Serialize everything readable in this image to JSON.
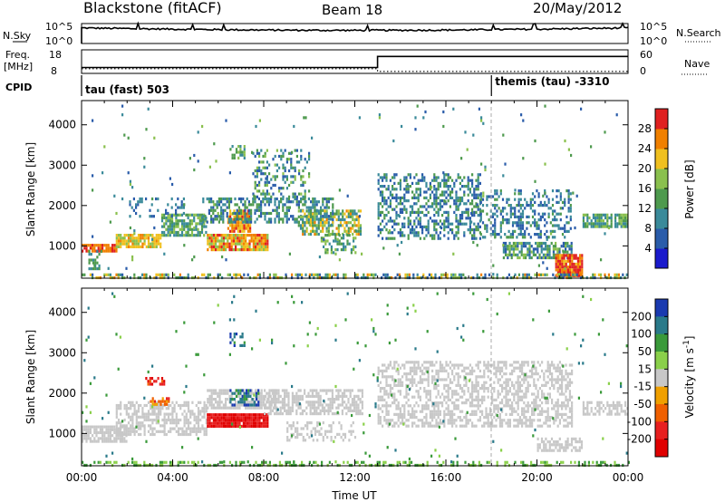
{
  "header": {
    "station": "Blackstone (fitACF)",
    "beam": "Beam 18",
    "date": "20/May/2012"
  },
  "top_panel": {
    "nsky_label": "N.Sky",
    "nsearch_label": "N.Search",
    "nsky_tick_top": "10^5",
    "nsky_tick_bottom": "10^0",
    "nsearch_tick_top": "10^5",
    "nsearch_tick_bottom": "10^0",
    "freq_label_1": "Freq.",
    "freq_label_2": "[MHz]",
    "freq_tick_top": "18",
    "freq_tick_bottom": "8",
    "nave_label": "Nave",
    "nave_tick_top": "60",
    "nave_tick_bottom": "0",
    "cpid_label": "CPID",
    "cpid_segments": [
      {
        "start_hour": 0,
        "label": "tau (fast) 503"
      },
      {
        "start_hour": 18,
        "label": "themis (tau) -3310"
      }
    ],
    "freq_steps": [
      [
        0,
        10.5
      ],
      [
        13,
        10.5
      ],
      [
        13,
        15.2
      ],
      [
        24,
        15.2
      ]
    ],
    "nave_steps": [
      [
        0,
        12
      ],
      [
        13,
        12
      ],
      [
        13,
        5
      ],
      [
        24,
        5
      ]
    ]
  },
  "chart_data": [
    {
      "type": "heatmap",
      "parameter": "power",
      "xlabel": "",
      "ylabel": "Slant Range [km]",
      "xlim": [
        0,
        24
      ],
      "ylim": [
        200,
        4600
      ],
      "yticks": [
        1000,
        2000,
        3000,
        4000
      ],
      "colorbar_label": "Power [dB]",
      "colorbar_range": [
        0,
        32
      ],
      "colorbar_ticks": [
        4,
        8,
        12,
        16,
        20,
        24,
        28
      ],
      "colorbar_colors": [
        "#1a1acc",
        "#2a5caa",
        "#3a8a9a",
        "#4e9a4e",
        "#8ac04e",
        "#f0c020",
        "#f08000",
        "#e02020"
      ]
    },
    {
      "type": "heatmap",
      "parameter": "velocity",
      "xlabel": "Time UT",
      "ylabel": "Slant Range [km]",
      "xlim": [
        0,
        24
      ],
      "ylim": [
        200,
        4600
      ],
      "yticks": [
        1000,
        2000,
        3000,
        4000
      ],
      "xticks": [
        "00:00",
        "04:00",
        "08:00",
        "12:00",
        "16:00",
        "20:00",
        "00:00"
      ],
      "colorbar_label": "Velocity [m s^-1]",
      "colorbar_ticks": [
        "200",
        "100",
        "50",
        "15",
        "-15",
        "-50",
        "-100",
        "-200"
      ],
      "colorbar_colors": [
        "#1a3ab0",
        "#2a7a8a",
        "#3a9a3a",
        "#8ad04a",
        "#c8c8c8",
        "#f0a000",
        "#f06000",
        "#e82020",
        "#e00000"
      ]
    }
  ],
  "scatter_regions": {
    "power": [
      {
        "x0": 0.0,
        "x1": 1.5,
        "y0": 850,
        "y1": 1050,
        "density": 0.9,
        "vals": [
          24,
          30
        ]
      },
      {
        "x0": 0.3,
        "x1": 0.9,
        "y0": 400,
        "y1": 900,
        "density": 0.35,
        "vals": [
          8,
          16
        ]
      },
      {
        "x0": 1.5,
        "x1": 3.5,
        "y0": 1000,
        "y1": 1300,
        "density": 0.85,
        "vals": [
          18,
          26
        ]
      },
      {
        "x0": 3.5,
        "x1": 5.5,
        "y0": 1250,
        "y1": 1800,
        "density": 0.75,
        "vals": [
          8,
          20
        ]
      },
      {
        "x0": 2.0,
        "x1": 4.5,
        "y0": 1700,
        "y1": 2200,
        "density": 0.25,
        "vals": [
          4,
          12
        ]
      },
      {
        "x0": 5.5,
        "x1": 8.2,
        "y0": 900,
        "y1": 1300,
        "density": 0.9,
        "vals": [
          18,
          30
        ]
      },
      {
        "x0": 6.4,
        "x1": 7.4,
        "y0": 1350,
        "y1": 1900,
        "density": 0.85,
        "vals": [
          20,
          30
        ]
      },
      {
        "x0": 5.3,
        "x1": 11.0,
        "y0": 1600,
        "y1": 2200,
        "density": 0.55,
        "vals": [
          4,
          16
        ]
      },
      {
        "x0": 7.5,
        "x1": 10.0,
        "y0": 2200,
        "y1": 3400,
        "density": 0.3,
        "vals": [
          4,
          18
        ]
      },
      {
        "x0": 6.5,
        "x1": 7.2,
        "y0": 3200,
        "y1": 3500,
        "density": 0.4,
        "vals": [
          8,
          18
        ]
      },
      {
        "x0": 9.5,
        "x1": 12.3,
        "y0": 1300,
        "y1": 1900,
        "density": 0.65,
        "vals": [
          8,
          26
        ]
      },
      {
        "x0": 10.5,
        "x1": 12.0,
        "y0": 800,
        "y1": 1300,
        "density": 0.4,
        "vals": [
          8,
          20
        ]
      },
      {
        "x0": 13.0,
        "x1": 17.5,
        "y0": 1200,
        "y1": 2800,
        "density": 0.45,
        "vals": [
          4,
          16
        ]
      },
      {
        "x0": 17.5,
        "x1": 21.5,
        "y0": 1200,
        "y1": 2400,
        "density": 0.35,
        "vals": [
          4,
          14
        ]
      },
      {
        "x0": 18.5,
        "x1": 21.5,
        "y0": 700,
        "y1": 1100,
        "density": 0.7,
        "vals": [
          4,
          20
        ]
      },
      {
        "x0": 20.8,
        "x1": 22.0,
        "y0": 250,
        "y1": 800,
        "density": 0.9,
        "vals": [
          22,
          32
        ]
      },
      {
        "x0": 22.0,
        "x1": 24.0,
        "y0": 1450,
        "y1": 1800,
        "density": 0.8,
        "vals": [
          8,
          20
        ]
      },
      {
        "x0": 0.0,
        "x1": 24.0,
        "y0": 220,
        "y1": 320,
        "density": 0.5,
        "vals": [
          4,
          26
        ]
      },
      {
        "x0": 0.0,
        "x1": 24.0,
        "y0": 300,
        "y1": 4500,
        "density": 0.01,
        "vals": [
          4,
          20
        ]
      }
    ],
    "velocity": [
      {
        "x0": 0.0,
        "x1": 2.0,
        "y0": 800,
        "y1": 1200,
        "density": 0.85,
        "vals": [
          -15,
          15
        ]
      },
      {
        "x0": 1.5,
        "x1": 5.5,
        "y0": 1000,
        "y1": 1800,
        "density": 0.55,
        "vals": [
          -15,
          15
        ]
      },
      {
        "x0": 3.0,
        "x1": 3.8,
        "y0": 1700,
        "y1": 1900,
        "density": 0.6,
        "vals": [
          -100,
          -15
        ]
      },
      {
        "x0": 2.8,
        "x1": 3.6,
        "y0": 2200,
        "y1": 2400,
        "density": 0.6,
        "vals": [
          -200,
          -50
        ]
      },
      {
        "x0": 5.5,
        "x1": 8.2,
        "y0": 1150,
        "y1": 1500,
        "density": 0.95,
        "vals": [
          -200,
          -100
        ]
      },
      {
        "x0": 5.5,
        "x1": 8.5,
        "y0": 1600,
        "y1": 2100,
        "density": 0.7,
        "vals": [
          -15,
          15
        ]
      },
      {
        "x0": 6.5,
        "x1": 7.8,
        "y0": 1700,
        "y1": 2100,
        "density": 0.5,
        "vals": [
          50,
          200
        ]
      },
      {
        "x0": 6.5,
        "x1": 7.2,
        "y0": 3200,
        "y1": 3500,
        "density": 0.5,
        "vals": [
          50,
          200
        ]
      },
      {
        "x0": 8.0,
        "x1": 12.3,
        "y0": 1500,
        "y1": 2100,
        "density": 0.6,
        "vals": [
          -15,
          15
        ]
      },
      {
        "x0": 9.0,
        "x1": 12.0,
        "y0": 800,
        "y1": 1300,
        "density": 0.4,
        "vals": [
          -15,
          15
        ]
      },
      {
        "x0": 13.0,
        "x1": 21.5,
        "y0": 1200,
        "y1": 2800,
        "density": 0.5,
        "vals": [
          -15,
          15
        ]
      },
      {
        "x0": 20.0,
        "x1": 22.0,
        "y0": 600,
        "y1": 900,
        "density": 0.6,
        "vals": [
          -15,
          15
        ]
      },
      {
        "x0": 22.0,
        "x1": 24.0,
        "y0": 1450,
        "y1": 1800,
        "density": 0.6,
        "vals": [
          -15,
          15
        ]
      },
      {
        "x0": 0.0,
        "x1": 24.0,
        "y0": 220,
        "y1": 320,
        "density": 0.4,
        "vals": [
          15,
          50
        ]
      },
      {
        "x0": 0.0,
        "x1": 24.0,
        "y0": 300,
        "y1": 4500,
        "density": 0.012,
        "vals": [
          15,
          100
        ]
      }
    ]
  }
}
